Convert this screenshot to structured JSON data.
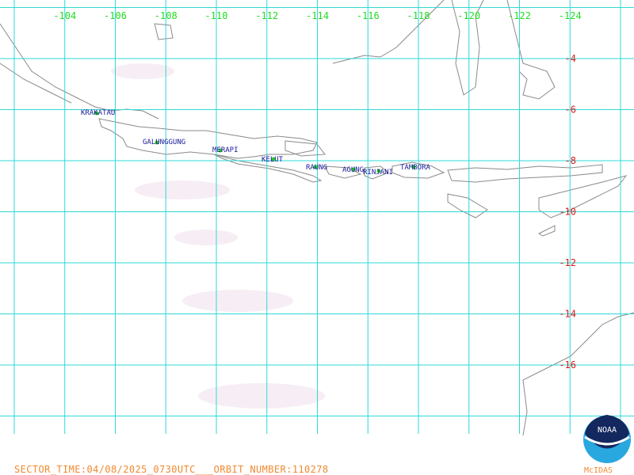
{
  "map": {
    "longitude_labels": [
      "-104",
      "-106",
      "-108",
      "-110",
      "-112",
      "-114",
      "-116",
      "-118",
      "-120",
      "-122",
      "-124"
    ],
    "latitude_labels": [
      "-4",
      "-6",
      "-8",
      "-10",
      "-12",
      "-14",
      "-16"
    ],
    "volcanoes": [
      "KRAKATAU",
      "GALUNGGUNG",
      "MERAPI",
      "KELUT",
      "RAUNG",
      "AGUNG",
      "RINJANI",
      "TAMBORA"
    ],
    "footer": "SECTOR_TIME:04/08/2025_0730UTC___ORBIT_NUMBER:110278",
    "logo": {
      "name": "NOAA",
      "caption": "McIDAS"
    }
  }
}
